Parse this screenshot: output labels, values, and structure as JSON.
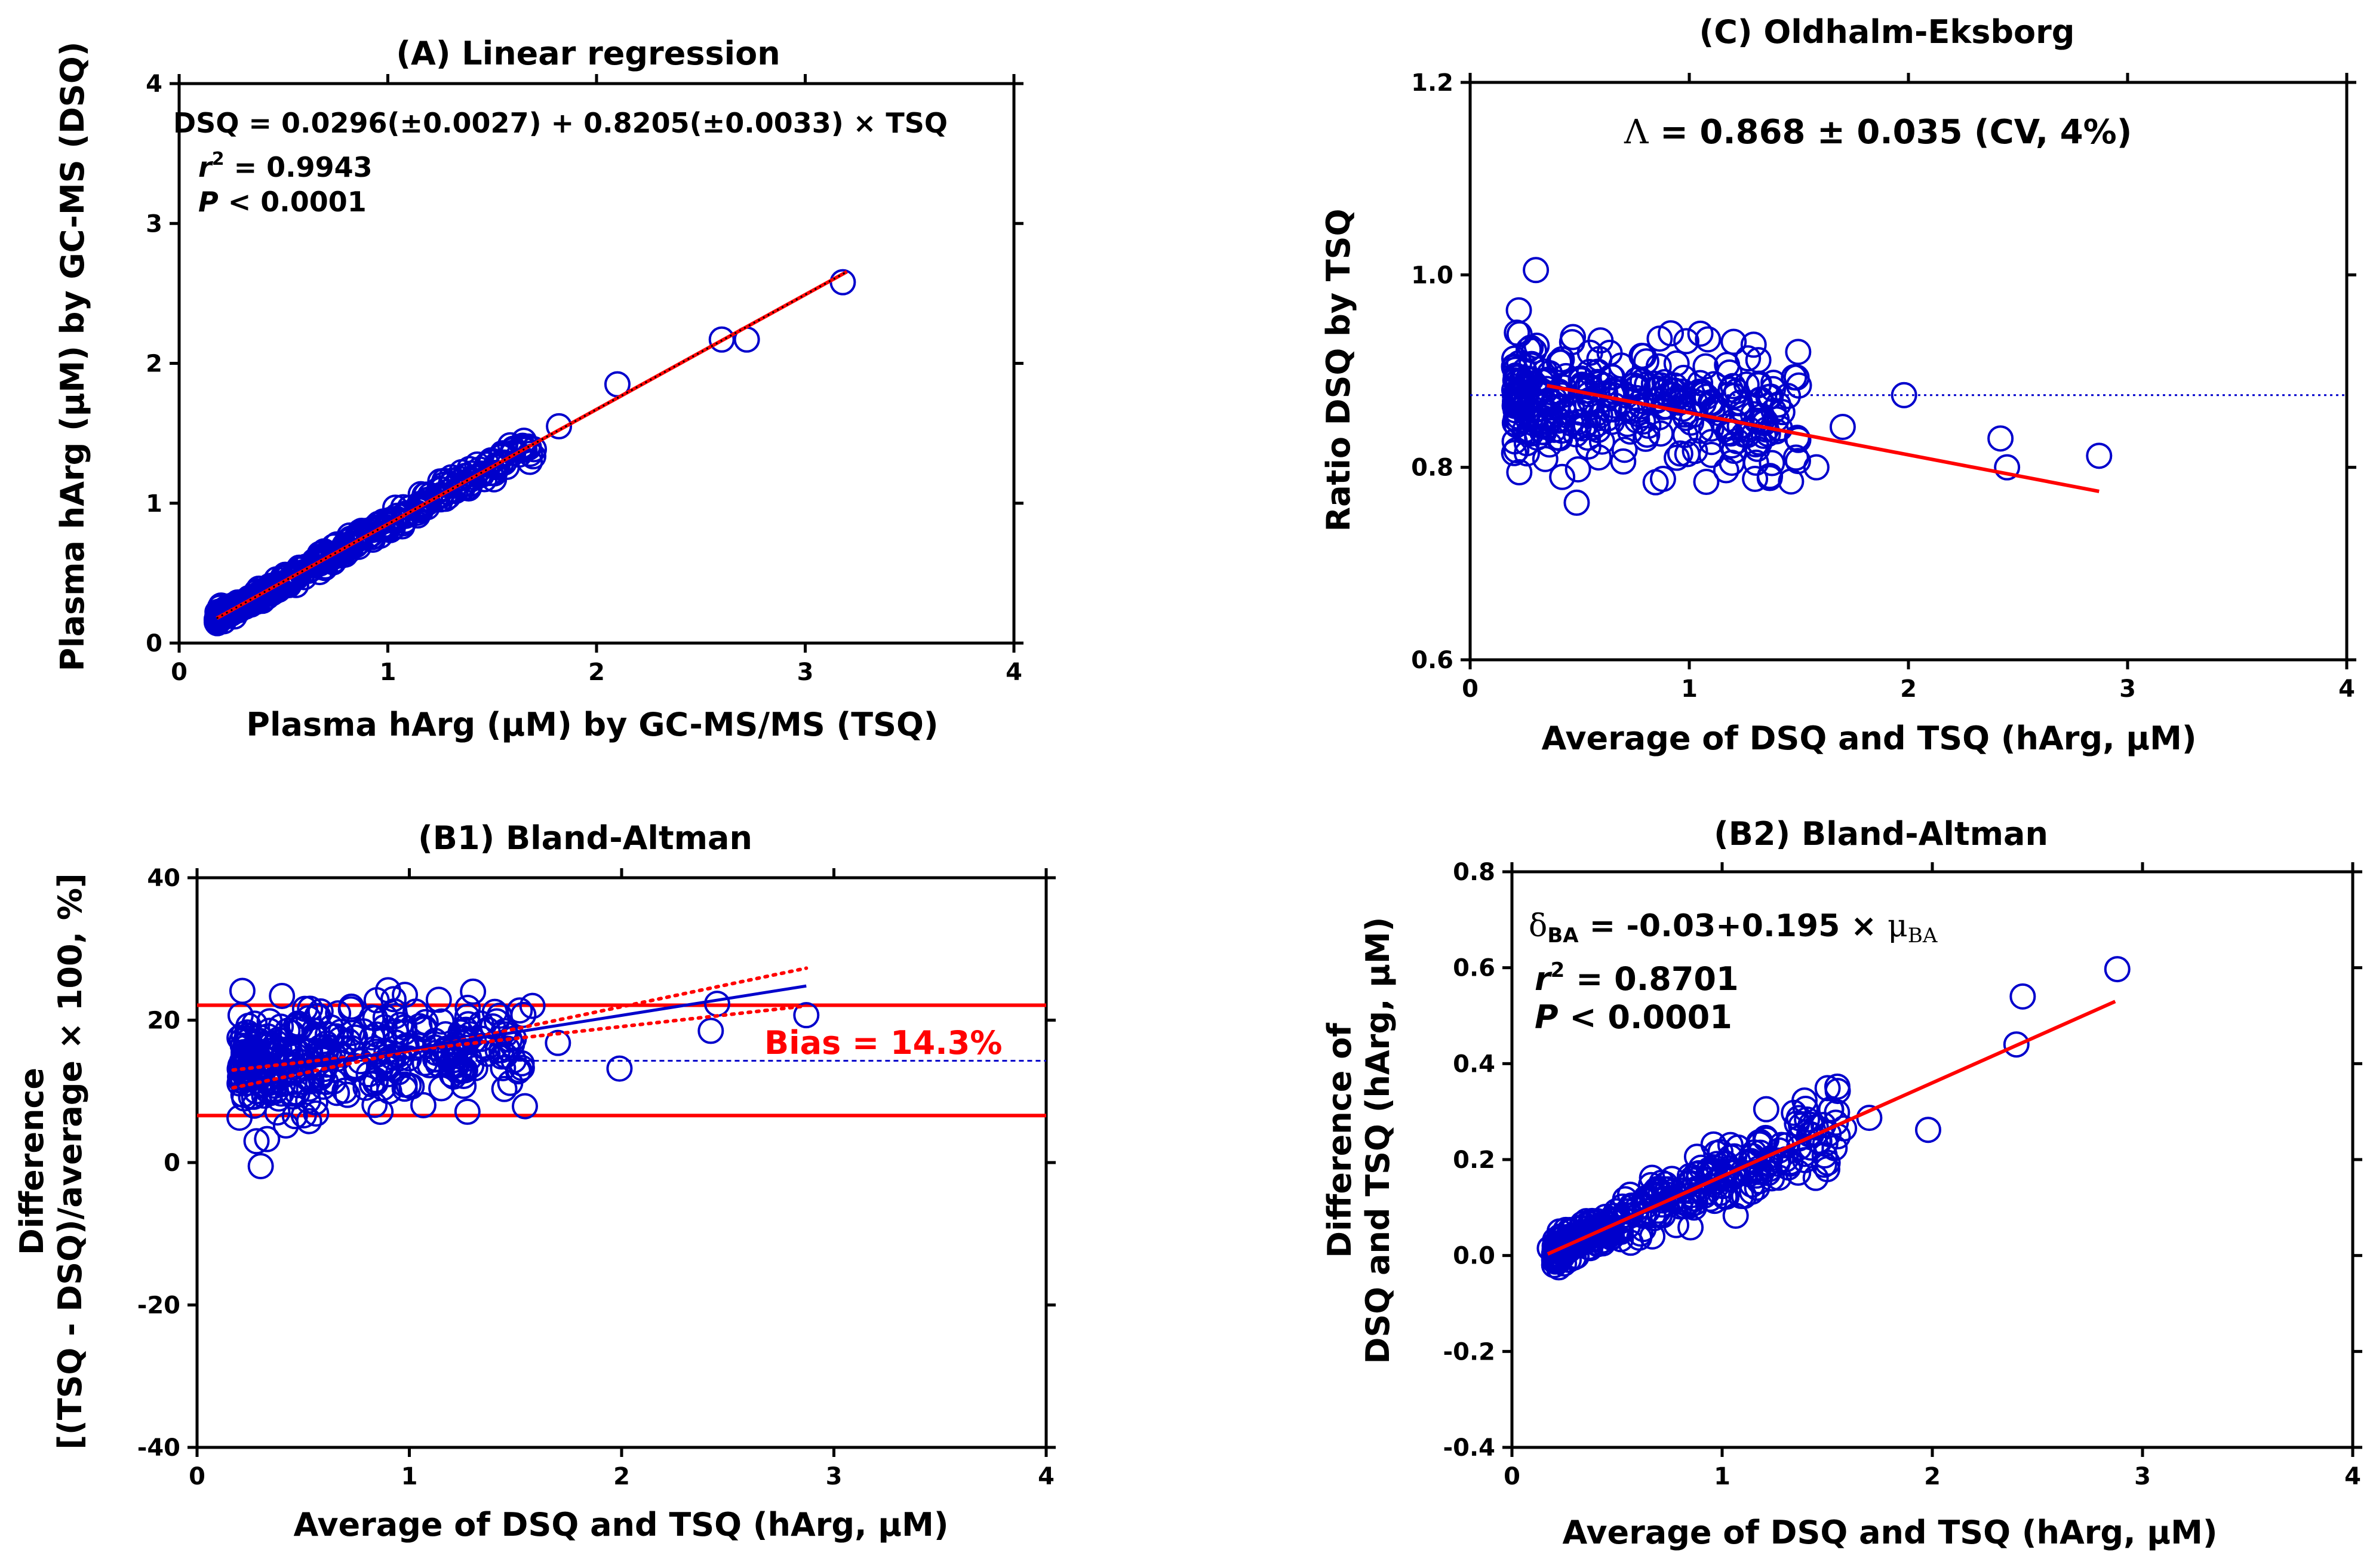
{
  "chart_data": [
    {
      "id": "A",
      "type": "scatter",
      "title": "(A) Linear regression",
      "xlabel": "Plasma hArg (µM) by GC-MS/MS (TSQ)",
      "ylabel": "Plasma hArg (µM) by GC-MS (DSQ)",
      "xlim": [
        0,
        4
      ],
      "ylim": [
        0,
        4
      ],
      "xticks": [
        "0",
        "1",
        "2",
        "3",
        "4"
      ],
      "yticks": [
        "0",
        "1",
        "2",
        "3",
        "4"
      ],
      "annotations": {
        "equation": "DSQ = 0.0296(±0.0027) + 0.8205(±0.0033) × TSQ",
        "r2_label": "r",
        "r2_sup": "2",
        "r2_value": " = 0.9943",
        "p_label": "P",
        "p_value": " < 0.0001"
      },
      "fit": {
        "intercept": 0.0296,
        "slope": 0.8205,
        "x_range": [
          0.18,
          3.2
        ]
      },
      "highlight_points": [
        [
          0.18,
          0.17
        ],
        [
          3.18,
          2.58
        ],
        [
          2.6,
          2.17
        ],
        [
          2.72,
          2.17
        ],
        [
          2.1,
          1.85
        ],
        [
          1.82,
          1.55
        ],
        [
          1.6,
          1.38
        ]
      ],
      "cluster": {
        "n": 360,
        "x_range": [
          0.18,
          1.7
        ],
        "noise": 0.04,
        "seed": 11
      }
    },
    {
      "id": "C",
      "type": "scatter",
      "title": "(C) Oldhalm-Eksborg",
      "xlabel": "Average of DSQ and TSQ (hArg, µM)",
      "ylabel": "Ratio DSQ by TSQ",
      "xlim": [
        0,
        4
      ],
      "ylim": [
        0.6,
        1.2
      ],
      "xticks": [
        "0",
        "1",
        "2",
        "3",
        "4"
      ],
      "yticks": [
        "0.6",
        "0.8",
        "1.0",
        "1.2"
      ],
      "annotations": {
        "lambda_symbol": "Λ",
        "lambda_text": " =  0.868 ± 0.035 (CV, 4%)"
      },
      "reference_line": 0.875,
      "fit": {
        "x_range": [
          0.35,
          2.87
        ],
        "y_range": [
          0.885,
          0.775
        ]
      },
      "highlight_points": [
        [
          0.3,
          1.005
        ],
        [
          1.98,
          0.875
        ],
        [
          2.42,
          0.83
        ],
        [
          2.45,
          0.8
        ],
        [
          2.87,
          0.812
        ],
        [
          1.58,
          0.8
        ],
        [
          1.7,
          0.842
        ],
        [
          1.5,
          0.885
        ],
        [
          1.3,
          0.788
        ],
        [
          0.42,
          0.79
        ],
        [
          0.88,
          0.788
        ]
      ],
      "cluster": {
        "n": 330,
        "x_range": [
          0.2,
          1.5
        ],
        "center": 0.87,
        "noise": 0.03,
        "seed": 23
      }
    },
    {
      "id": "B1",
      "type": "scatter",
      "title": "(B1) Bland-Altman",
      "xlabel": "Average of DSQ and TSQ (hArg, µM)",
      "ylabel_line1": "Difference",
      "ylabel_line2": "[(TSQ - DSQ)/average × 100, %]",
      "xlim": [
        0,
        4
      ],
      "ylim": [
        -40,
        40
      ],
      "xticks": [
        "0",
        "1",
        "2",
        "3",
        "4"
      ],
      "yticks": [
        "-40",
        "-20",
        "0",
        "20",
        "40"
      ],
      "annotations": {
        "bias_label": "Bias = 14.3%"
      },
      "bias": 14.3,
      "loa_upper": 22.1,
      "loa_lower": 6.6,
      "fit": {
        "x_range": [
          0.17,
          2.87
        ],
        "y_range": [
          12.0,
          24.8
        ]
      },
      "ci_upper": {
        "x_range": [
          0.17,
          2.87
        ],
        "y_range": [
          10.5,
          27.3
        ]
      },
      "ci_lower": {
        "x_range": [
          0.17,
          2.87
        ],
        "y_range": [
          13.0,
          22.0
        ]
      },
      "highlight_points": [
        [
          0.3,
          -0.5
        ],
        [
          0.2,
          6.3
        ],
        [
          0.28,
          3.0
        ],
        [
          0.33,
          3.3
        ],
        [
          1.99,
          13.2
        ],
        [
          2.42,
          18.5
        ],
        [
          2.45,
          22.3
        ],
        [
          2.87,
          20.7
        ],
        [
          1.58,
          22.0
        ],
        [
          1.7,
          16.8
        ],
        [
          0.4,
          23.4
        ],
        [
          1.3,
          24.0
        ],
        [
          0.9,
          24.2
        ]
      ],
      "cluster": {
        "n": 330,
        "x_range": [
          0.2,
          1.55
        ],
        "center": 14.3,
        "noise": 3.5,
        "seed": 37
      }
    },
    {
      "id": "B2",
      "type": "scatter",
      "title": "(B2) Bland-Altman",
      "xlabel": "Average of DSQ and TSQ (hArg, µM)",
      "ylabel_line1": "Difference of",
      "ylabel_line2": "DSQ and TSQ (hArg, µM)",
      "xlim": [
        0,
        4
      ],
      "ylim": [
        -0.4,
        0.8
      ],
      "xticks": [
        "0",
        "1",
        "2",
        "3",
        "4"
      ],
      "yticks": [
        "-0.4",
        "-0.2",
        "0.0",
        "0.2",
        "0.4",
        "0.6",
        "0.8"
      ],
      "annotations": {
        "delta_symbol": "δ",
        "delta_sub": "BA",
        "delta_text": " = -0.03+0.195 × ",
        "mu_symbol": "μ",
        "mu_sub": "BA",
        "r2_label": "r",
        "r2_sup": "2",
        "r2_value": " = 0.8701",
        "p_label": "P",
        "p_value": " < 0.0001"
      },
      "fit": {
        "intercept": -0.03,
        "slope": 0.195,
        "x_range": [
          0.17,
          2.87
        ]
      },
      "highlight_points": [
        [
          2.88,
          0.597
        ],
        [
          2.43,
          0.54
        ],
        [
          2.4,
          0.44
        ],
        [
          1.98,
          0.262
        ],
        [
          1.7,
          0.287
        ],
        [
          1.55,
          0.343
        ],
        [
          1.58,
          0.265
        ],
        [
          1.5,
          0.18
        ],
        [
          0.18,
          0.015
        ]
      ],
      "cluster": {
        "n": 340,
        "x_range": [
          0.2,
          1.55
        ],
        "noise": 0.02,
        "seed": 53
      }
    }
  ]
}
